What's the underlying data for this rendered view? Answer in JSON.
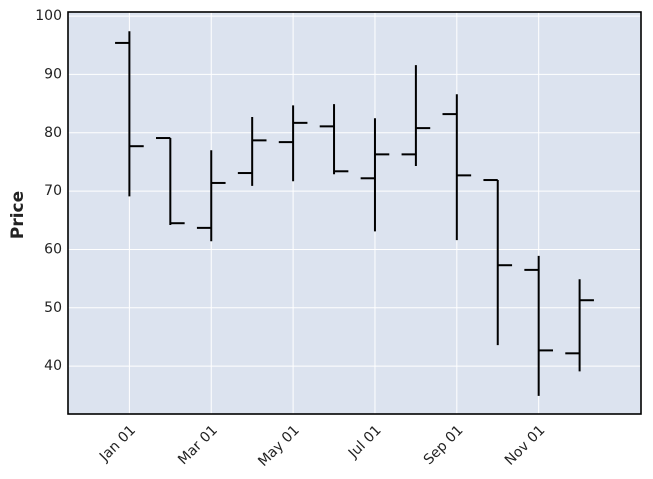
{
  "chart_data": {
    "type": "ohlc",
    "ylabel": "Price",
    "categories": [
      "Jan 01",
      null,
      "Mar 01",
      null,
      "May 01",
      null,
      "Jul 01",
      null,
      "Sep 01",
      null,
      "Nov 01",
      null
    ],
    "open": [
      95.4,
      79.1,
      63.7,
      73.1,
      78.4,
      81.1,
      72.2,
      76.3,
      83.2,
      71.9,
      56.5,
      42.2
    ],
    "high": [
      97.4,
      79.1,
      77.0,
      82.7,
      84.7,
      84.9,
      82.5,
      91.6,
      86.6,
      71.9,
      58.9,
      54.9
    ],
    "low": [
      69.1,
      64.2,
      61.4,
      70.9,
      71.7,
      72.9,
      63.1,
      74.3,
      61.6,
      43.6,
      34.9,
      39.1
    ],
    "close": [
      77.7,
      64.5,
      71.4,
      78.7,
      81.7,
      73.4,
      76.3,
      80.8,
      72.7,
      57.3,
      42.7,
      51.3
    ],
    "color": "#000000",
    "background": "#dce3ef",
    "ylim": [
      31.8,
      100.7
    ],
    "yticks": [
      40,
      50,
      60,
      70,
      80,
      90,
      100
    ],
    "grid": true
  }
}
